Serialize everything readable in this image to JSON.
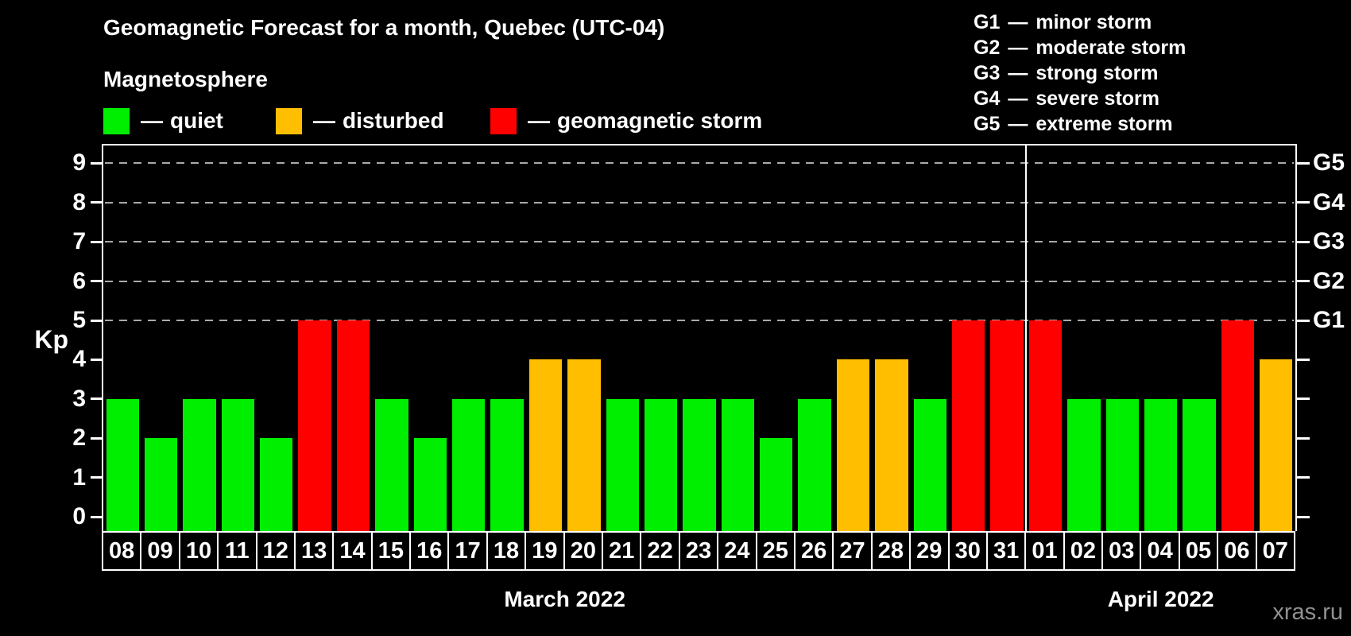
{
  "title": "Geomagnetic Forecast for a month, Quebec (UTC-04)",
  "subtitle": "Magnetosphere",
  "watermark": "xras.ru",
  "colors": {
    "quiet": "#00ee00",
    "disturbed": "#ffbe00",
    "storm": "#ff0000",
    "background": "#000000",
    "text": "#ffffff",
    "grid": "#aaaaaa",
    "watermark_text": "#919191"
  },
  "legend": [
    {
      "status": "quiet",
      "dash": "—",
      "label": "quiet"
    },
    {
      "status": "disturbed",
      "dash": "—",
      "label": "disturbed"
    },
    {
      "status": "storm",
      "dash": "—",
      "label": "geomagnetic storm"
    }
  ],
  "g_scale_legend": [
    {
      "code": "G1",
      "dash": "—",
      "label": "minor storm"
    },
    {
      "code": "G2",
      "dash": "—",
      "label": "moderate storm"
    },
    {
      "code": "G3",
      "dash": "—",
      "label": "strong storm"
    },
    {
      "code": "G4",
      "dash": "—",
      "label": "severe storm"
    },
    {
      "code": "G5",
      "dash": "—",
      "label": "extreme storm"
    }
  ],
  "chart_data": {
    "type": "bar",
    "title": "Geomagnetic Forecast for a month, Quebec (UTC-04)",
    "ylabel": "Kp",
    "ylim": [
      0,
      9
    ],
    "y_ticks": [
      0,
      1,
      2,
      3,
      4,
      5,
      6,
      7,
      8,
      9
    ],
    "gridline_levels": [
      5,
      6,
      7,
      8,
      9
    ],
    "grid_style": "dashed",
    "legend_position": "top-left",
    "categories": [
      "08",
      "09",
      "10",
      "11",
      "12",
      "13",
      "14",
      "15",
      "16",
      "17",
      "18",
      "19",
      "20",
      "21",
      "22",
      "23",
      "24",
      "25",
      "26",
      "27",
      "28",
      "29",
      "30",
      "31",
      "01",
      "02",
      "03",
      "04",
      "05",
      "06",
      "07"
    ],
    "values": [
      3,
      2,
      3,
      3,
      2,
      5,
      5,
      3,
      2,
      3,
      3,
      4,
      4,
      3,
      3,
      3,
      3,
      2,
      3,
      4,
      4,
      3,
      5,
      5,
      5,
      3,
      3,
      3,
      3,
      5,
      4
    ],
    "statuses": [
      "quiet",
      "quiet",
      "quiet",
      "quiet",
      "quiet",
      "storm",
      "storm",
      "quiet",
      "quiet",
      "quiet",
      "quiet",
      "disturbed",
      "disturbed",
      "quiet",
      "quiet",
      "quiet",
      "quiet",
      "quiet",
      "quiet",
      "disturbed",
      "disturbed",
      "quiet",
      "storm",
      "storm",
      "storm",
      "quiet",
      "quiet",
      "quiet",
      "quiet",
      "storm",
      "disturbed"
    ],
    "month_groups": [
      {
        "label": "March 2022",
        "days": 24
      },
      {
        "label": "April 2022",
        "days": 7
      }
    ],
    "right_axis_labels": [
      {
        "kp": 5,
        "text": "G1"
      },
      {
        "kp": 6,
        "text": "G2"
      },
      {
        "kp": 7,
        "text": "G3"
      },
      {
        "kp": 8,
        "text": "G4"
      },
      {
        "kp": 9,
        "text": "G5"
      }
    ],
    "right_axis_tick_levels": [
      0,
      1,
      2,
      3,
      4,
      5,
      6,
      7,
      8,
      9
    ]
  }
}
